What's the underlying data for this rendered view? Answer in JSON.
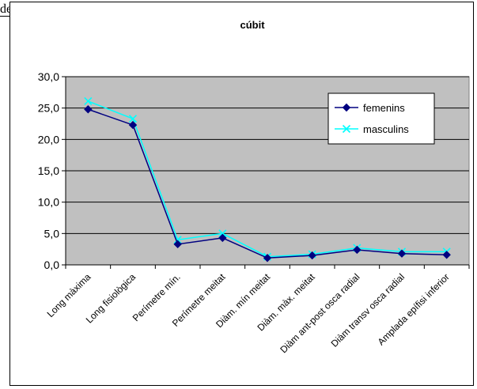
{
  "page": {
    "fragment_text": "de"
  },
  "chart_data": {
    "type": "line",
    "title": "cúbit",
    "categories": [
      "Long màxima",
      "Long fisiològica",
      "Perímetre mín.",
      "Perímetre meitat",
      "Diàm. mín meitat",
      "Diàm. màx. meitat",
      "Diàm ant-post osca radial",
      "Diàm transv osca radial",
      "Amplada epífisi inferior"
    ],
    "series": [
      {
        "name": "femenins",
        "color": "#000080",
        "marker": "diamond",
        "values": [
          24.8,
          22.3,
          3.3,
          4.3,
          1.1,
          1.5,
          2.4,
          1.8,
          1.6
        ]
      },
      {
        "name": "masculins",
        "color": "#00ffff",
        "marker": "x",
        "values": [
          26.1,
          23.3,
          4.0,
          5.0,
          1.3,
          1.7,
          2.7,
          2.1,
          2.1
        ]
      }
    ],
    "yticks": [
      "0,0",
      "5,0",
      "10,0",
      "15,0",
      "20,0",
      "25,0",
      "30,0"
    ],
    "ylim": [
      0,
      30
    ],
    "ystep": 5,
    "grid": true,
    "legend_position": "right",
    "plot_background": "#c0c0c0"
  }
}
